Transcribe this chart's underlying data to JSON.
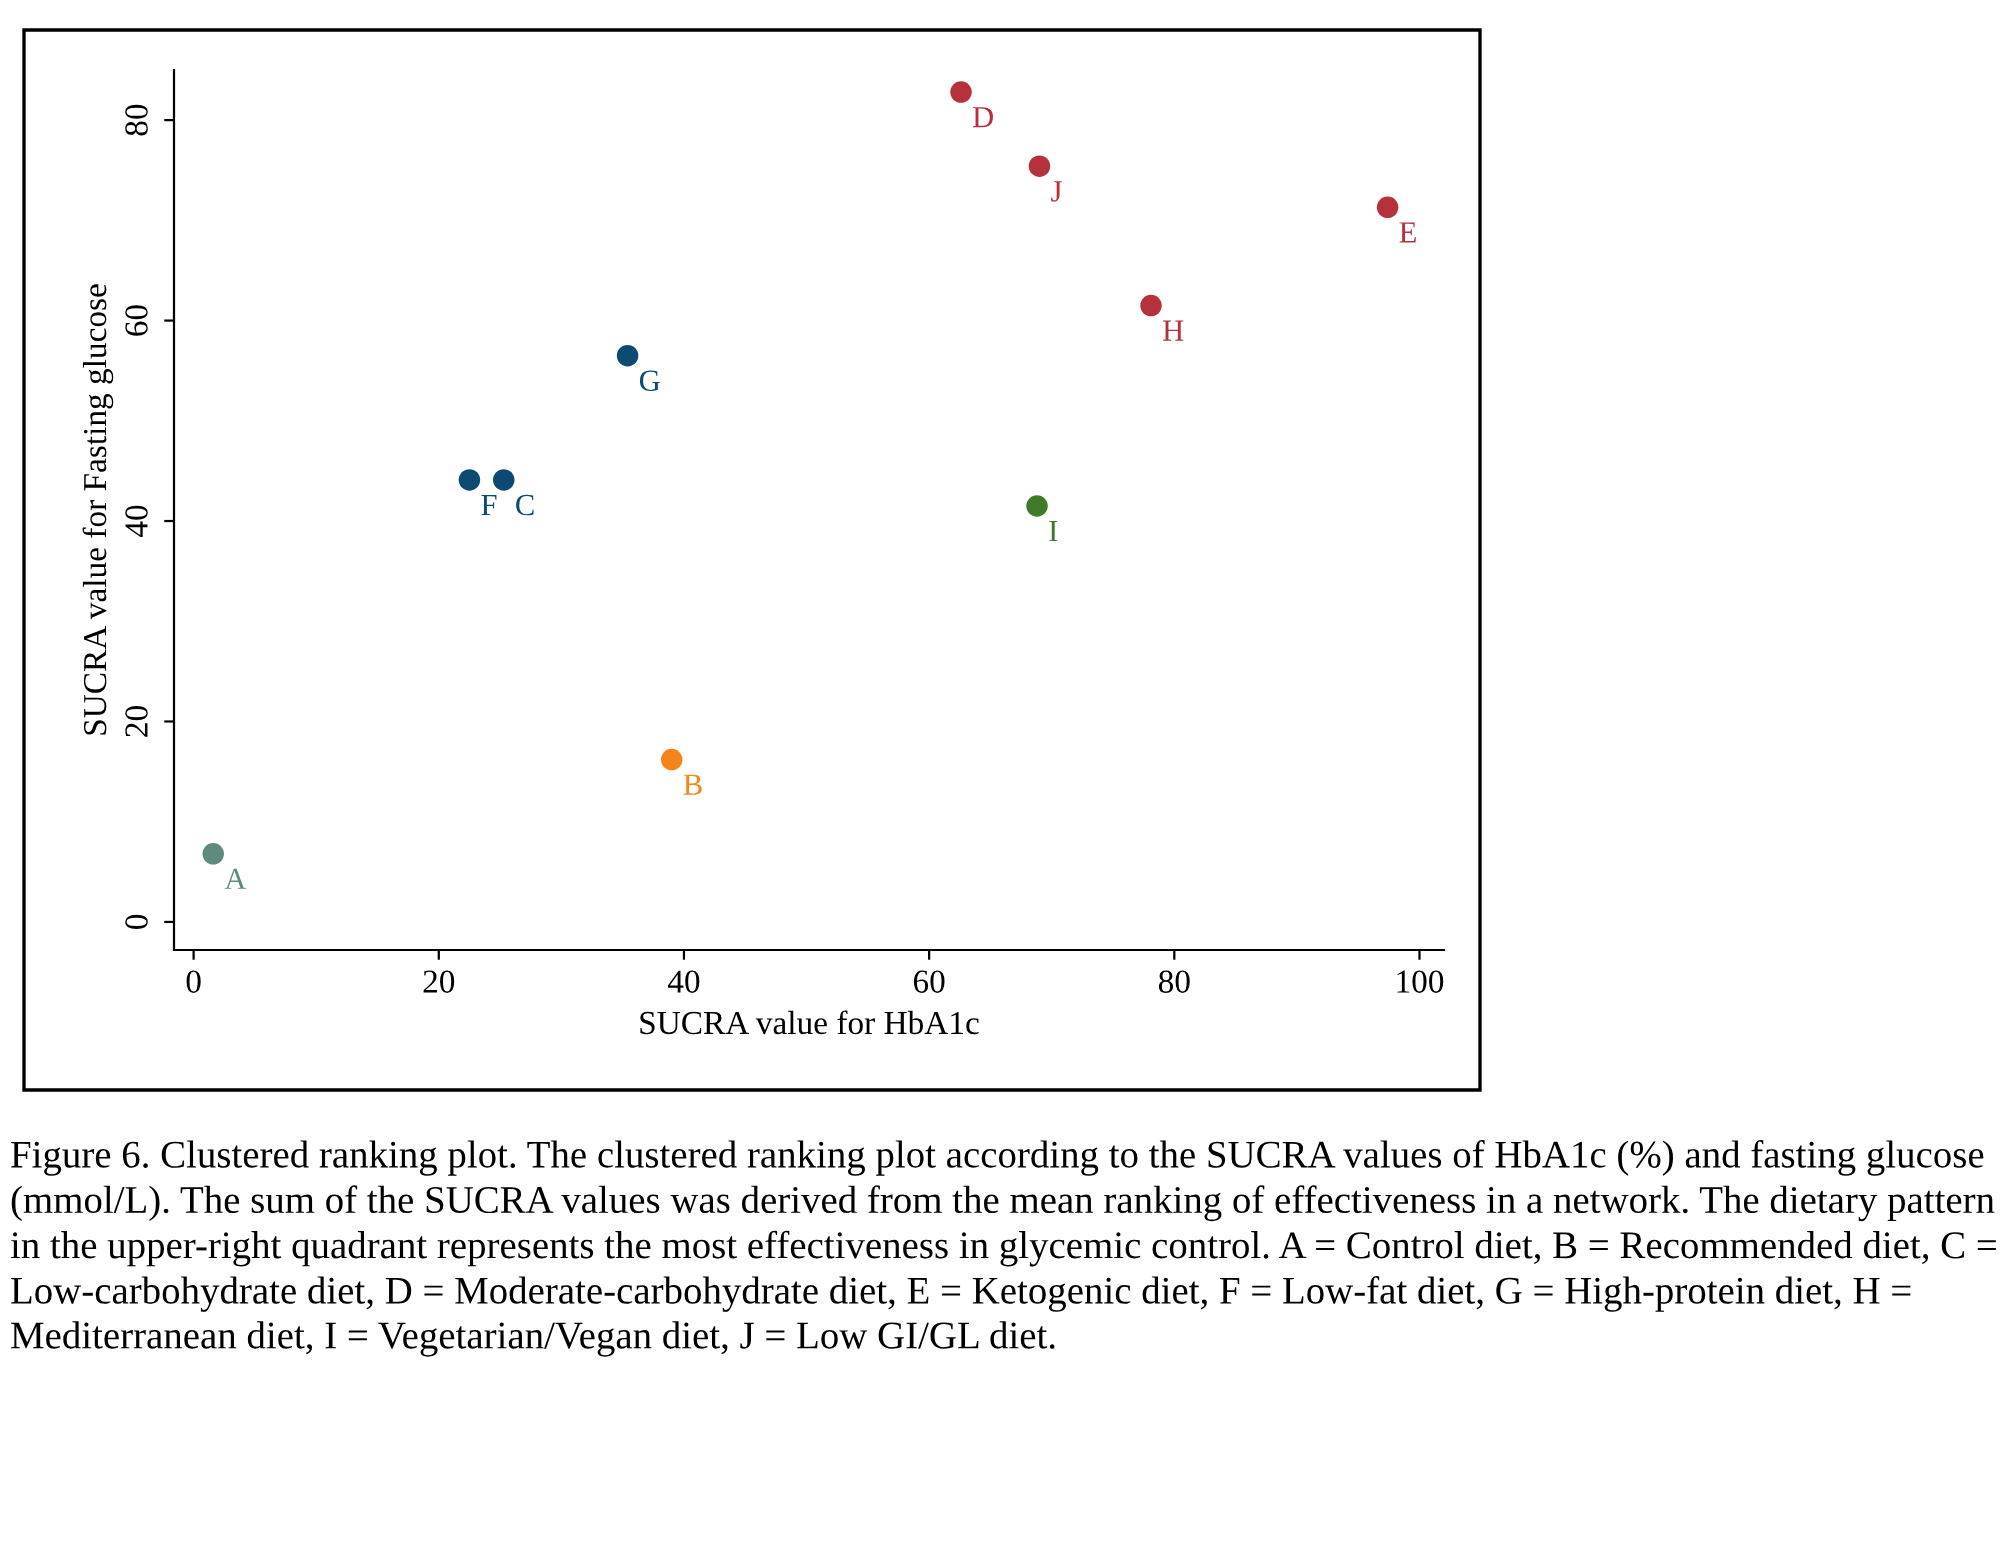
{
  "chart_data": {
    "type": "scatter",
    "xlabel": "SUCRA value for HbA1c",
    "ylabel": "SUCRA value for Fasting glucose",
    "x": [
      1.6,
      39.0,
      25.3,
      62.6,
      97.4,
      22.5,
      35.4,
      78.1,
      68.8,
      69.0
    ],
    "values": [
      6.8,
      16.2,
      44.1,
      82.8,
      71.3,
      44.1,
      56.5,
      61.5,
      41.5,
      75.4
    ],
    "value_labels": [
      "A",
      "B",
      "C",
      "D",
      "E",
      "F",
      "G",
      "H",
      "I",
      "J"
    ],
    "colors": [
      "#5e8b7e",
      "#f58518",
      "#0d4a73",
      "#b5313c",
      "#b5313c",
      "#0d4a73",
      "#0d4a73",
      "#b5313c",
      "#3f7a2a",
      "#b5313c"
    ],
    "xlim": [
      -1.6,
      102
    ],
    "ylim": [
      -2.8,
      85
    ],
    "xticks": [
      0,
      20,
      40,
      60,
      80,
      100
    ],
    "yticks": [
      0,
      20,
      40,
      60,
      80
    ],
    "marker": "circle",
    "grid": false,
    "legend": false,
    "annotations": [
      "Figure 6. Clustered ranking plot. The clustered ranking plot according to the SUCRA values of HbA1c (%) and fasting glucose (mmol/L). The sum of the SUCRA values was derived from the mean ranking of effectiveness in a network. The dietary pattern in the upper-right quadrant represents the most effectiveness in glycemic control. A = Control diet, B = Recommended diet, C = Low-carbohydrate diet, D = Moderate-carbohydrate diet, E = Ketogenic diet, F = Low-fat diet, G = High-protein diet, H = Mediterranean diet, I = Vegetarian/Vegan diet, J = Low GI/GL diet."
    ]
  }
}
